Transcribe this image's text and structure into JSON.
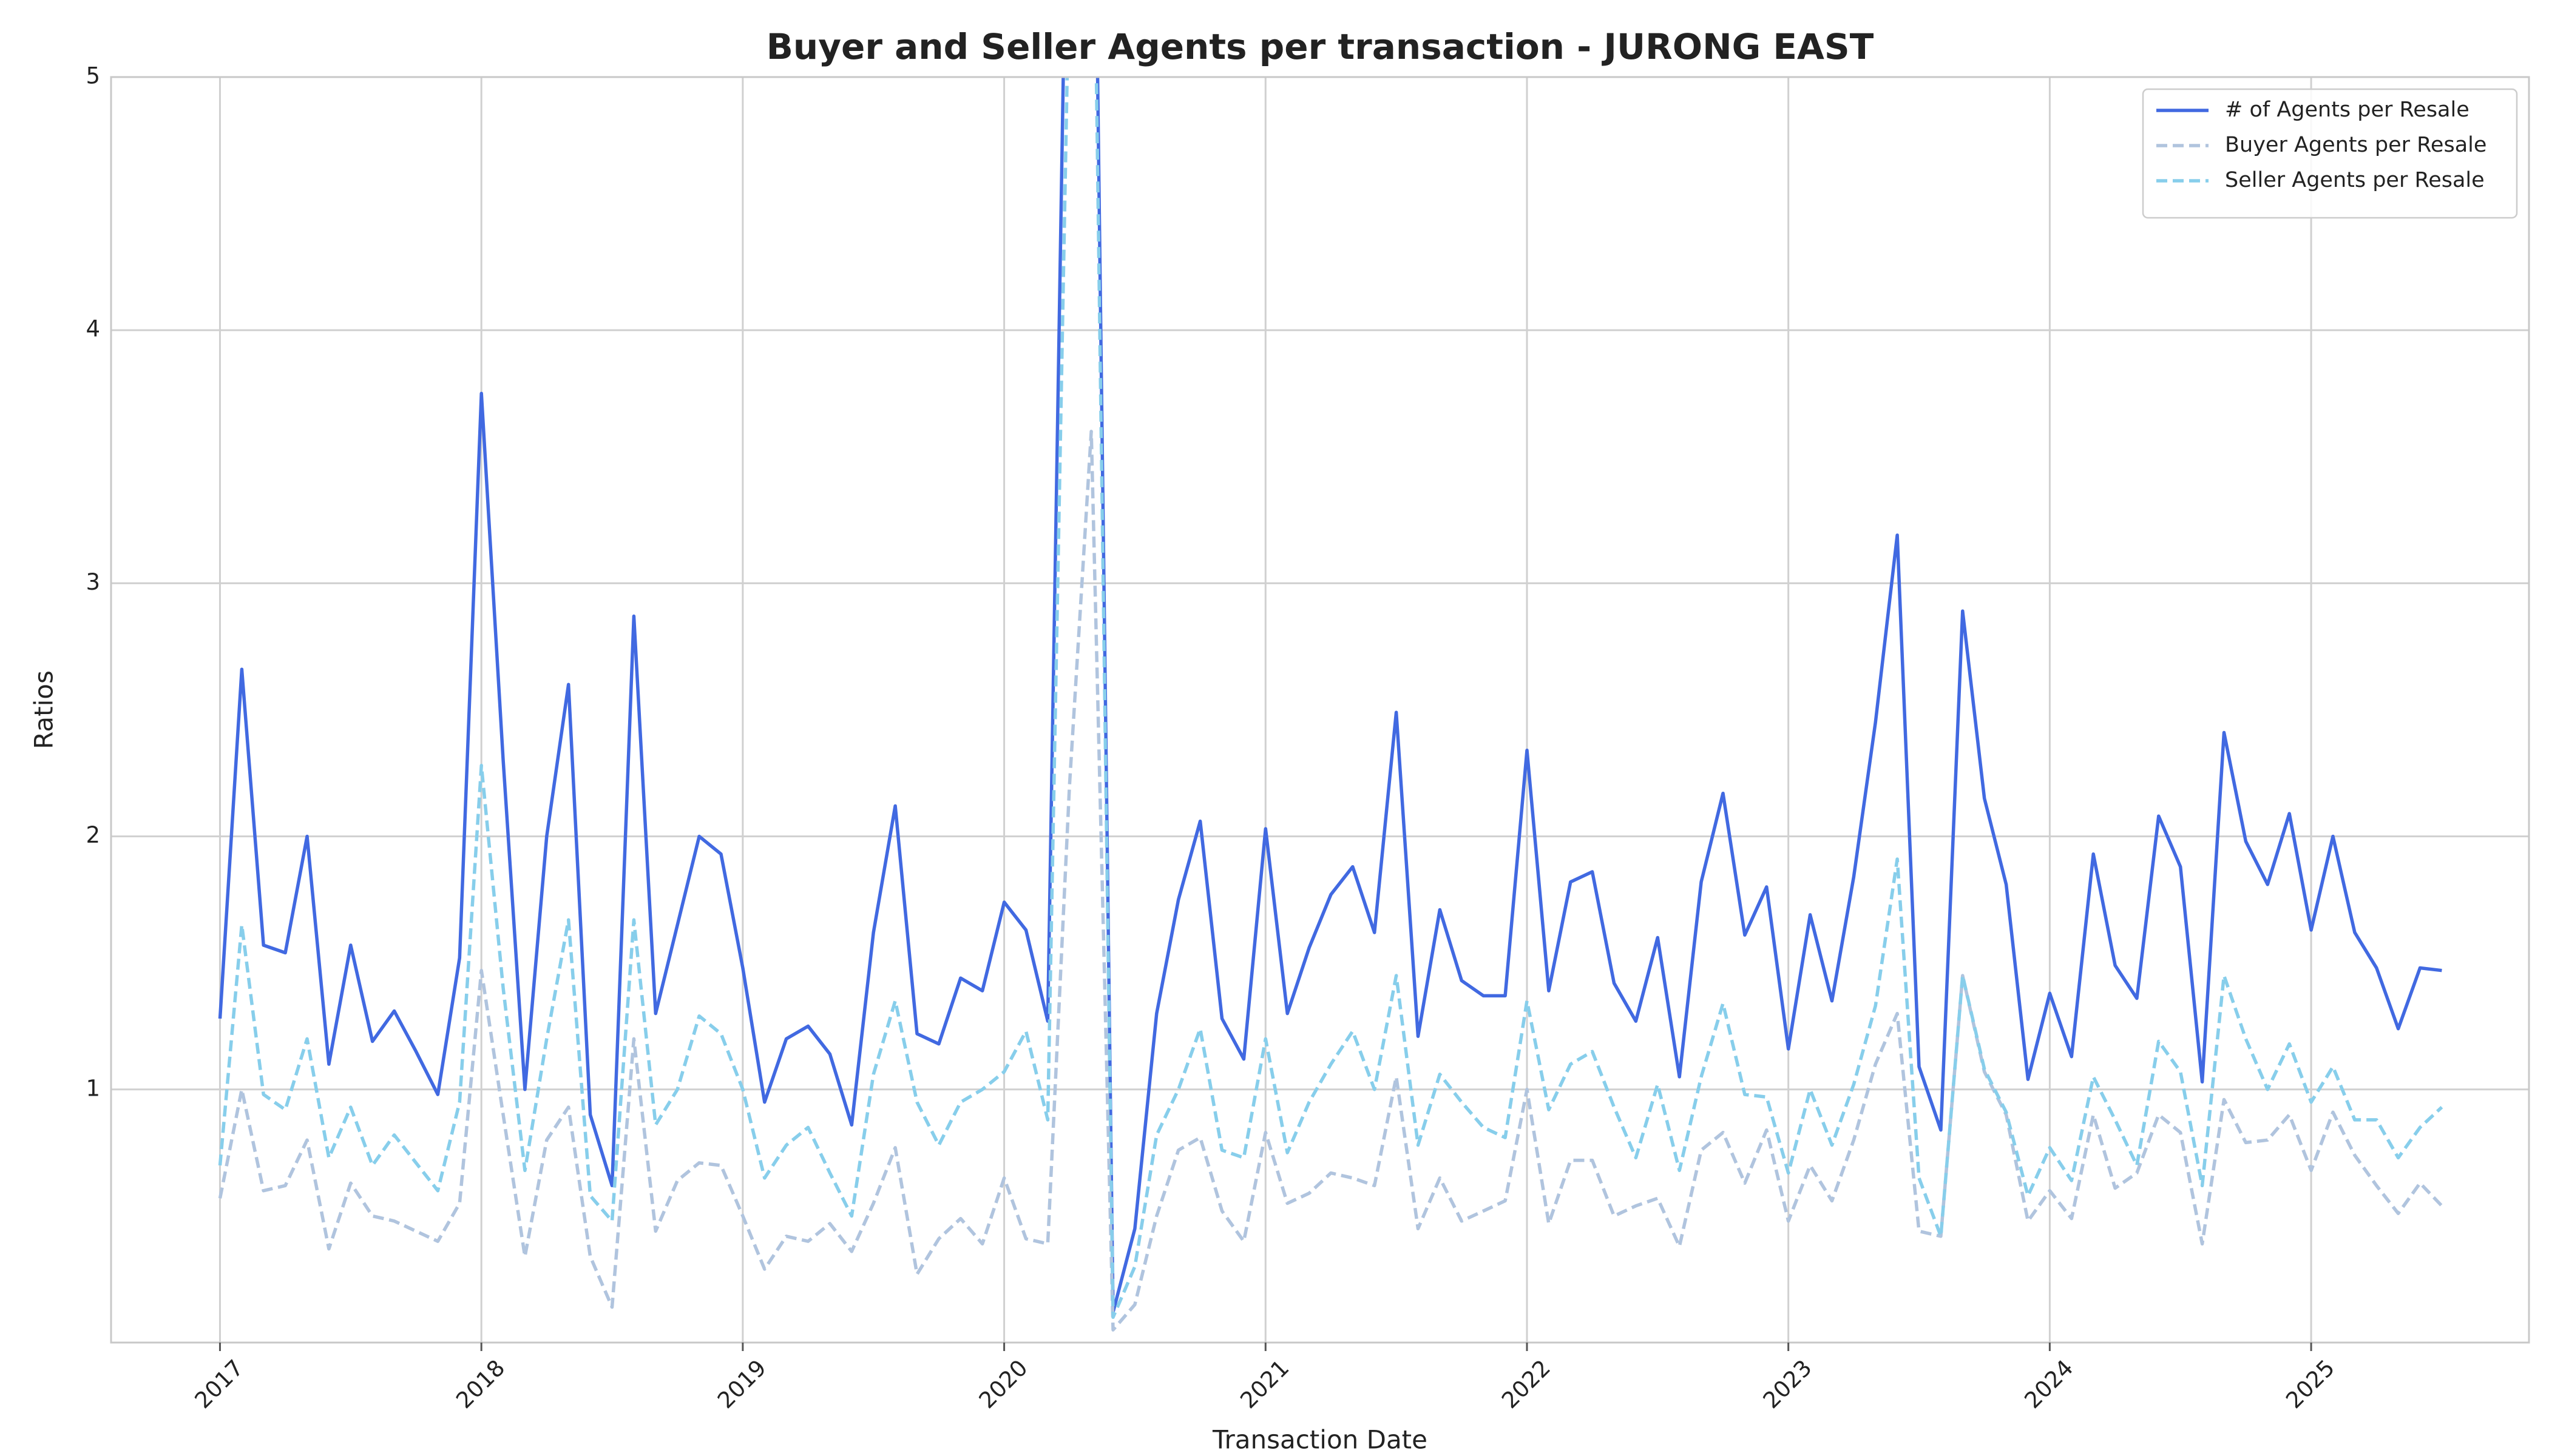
{
  "chart_data": {
    "type": "line",
    "title": "Buyer and Seller Agents per transaction - JURONG EAST",
    "xlabel": "Transaction Date",
    "ylabel": "Ratios",
    "x": [
      "2017-01",
      "2017-02",
      "2017-03",
      "2017-04",
      "2017-05",
      "2017-06",
      "2017-07",
      "2017-08",
      "2017-09",
      "2017-10",
      "2017-11",
      "2017-12",
      "2018-01",
      "2018-02",
      "2018-03",
      "2018-04",
      "2018-05",
      "2018-06",
      "2018-07",
      "2018-08",
      "2018-09",
      "2018-10",
      "2018-11",
      "2018-12",
      "2019-01",
      "2019-02",
      "2019-03",
      "2019-04",
      "2019-05",
      "2019-06",
      "2019-07",
      "2019-08",
      "2019-09",
      "2019-10",
      "2019-11",
      "2019-12",
      "2020-01",
      "2020-02",
      "2020-03",
      "2020-04",
      "2020-05",
      "2020-06",
      "2020-07",
      "2020-08",
      "2020-09",
      "2020-10",
      "2020-11",
      "2020-12",
      "2021-01",
      "2021-02",
      "2021-03",
      "2021-04",
      "2021-05",
      "2021-06",
      "2021-07",
      "2021-08",
      "2021-09",
      "2021-10",
      "2021-11",
      "2021-12",
      "2022-01",
      "2022-02",
      "2022-03",
      "2022-04",
      "2022-05",
      "2022-06",
      "2022-07",
      "2022-08",
      "2022-09",
      "2022-10",
      "2022-11",
      "2022-12",
      "2023-01",
      "2023-02",
      "2023-03",
      "2023-04",
      "2023-05",
      "2023-06",
      "2023-07",
      "2023-08",
      "2023-09",
      "2023-10",
      "2023-11",
      "2023-12",
      "2024-01",
      "2024-02",
      "2024-03",
      "2024-04",
      "2024-05",
      "2024-06",
      "2024-07",
      "2024-08",
      "2024-09",
      "2024-10",
      "2024-11",
      "2024-12",
      "2025-01",
      "2025-02",
      "2025-03",
      "2025-04",
      "2025-05",
      "2025-06",
      "2025-07"
    ],
    "series": [
      {
        "name": "# of Agents per Resale",
        "color": "#4169e1",
        "dash": false,
        "values": [
          1.28,
          2.66,
          1.57,
          1.54,
          2.0,
          1.1,
          1.57,
          1.19,
          1.31,
          1.15,
          0.98,
          1.52,
          3.75,
          2.3,
          1.0,
          2.0,
          2.6,
          0.9,
          0.62,
          2.87,
          1.3,
          1.65,
          2.0,
          1.93,
          1.48,
          0.95,
          1.2,
          1.25,
          1.14,
          0.86,
          1.62,
          2.12,
          1.22,
          1.18,
          1.44,
          1.39,
          1.74,
          1.63,
          1.27,
          6.5,
          7.0,
          0.12,
          0.45,
          1.3,
          1.75,
          2.06,
          1.28,
          1.12,
          2.03,
          1.3,
          1.56,
          1.77,
          1.88,
          1.62,
          2.49,
          1.21,
          1.71,
          1.43,
          1.37,
          1.37,
          2.34,
          1.39,
          1.82,
          1.86,
          1.42,
          1.27,
          1.6,
          1.05,
          1.82,
          2.17,
          1.61,
          1.8,
          1.16,
          1.69,
          1.35,
          1.84,
          2.45,
          3.19,
          1.09,
          0.84,
          2.89,
          2.15,
          1.81,
          1.04,
          1.38,
          1.13,
          1.93,
          1.49,
          1.36,
          2.08,
          1.88,
          1.03,
          2.41,
          1.98,
          1.81,
          2.09,
          1.63,
          2.0,
          1.62,
          1.48,
          1.24,
          1.48,
          1.47
        ]
      },
      {
        "name": "Buyer Agents per Resale",
        "color": "#b0c4de",
        "dash": true,
        "values": [
          0.57,
          1.0,
          0.6,
          0.62,
          0.8,
          0.37,
          0.63,
          0.5,
          0.48,
          0.44,
          0.4,
          0.55,
          1.47,
          0.9,
          0.34,
          0.8,
          0.93,
          0.34,
          0.14,
          1.2,
          0.44,
          0.64,
          0.71,
          0.7,
          0.5,
          0.29,
          0.42,
          0.4,
          0.47,
          0.36,
          0.55,
          0.77,
          0.27,
          0.41,
          0.49,
          0.39,
          0.65,
          0.41,
          0.39,
          2.2,
          3.6,
          0.05,
          0.15,
          0.5,
          0.76,
          0.81,
          0.52,
          0.4,
          0.83,
          0.55,
          0.59,
          0.67,
          0.65,
          0.62,
          1.05,
          0.45,
          0.65,
          0.48,
          0.52,
          0.56,
          1.0,
          0.47,
          0.72,
          0.72,
          0.5,
          0.54,
          0.57,
          0.38,
          0.76,
          0.83,
          0.63,
          0.84,
          0.48,
          0.7,
          0.56,
          0.8,
          1.1,
          1.3,
          0.44,
          0.42,
          1.45,
          1.07,
          0.9,
          0.48,
          0.6,
          0.49,
          0.9,
          0.61,
          0.67,
          0.9,
          0.83,
          0.39,
          0.96,
          0.79,
          0.8,
          0.9,
          0.68,
          0.91,
          0.74,
          0.62,
          0.51,
          0.63,
          0.54
        ]
      },
      {
        "name": "Seller Agents per Resale",
        "color": "#87ceeb",
        "dash": true,
        "values": [
          0.7,
          1.65,
          0.98,
          0.92,
          1.2,
          0.73,
          0.93,
          0.7,
          0.82,
          0.71,
          0.6,
          0.95,
          2.28,
          1.4,
          0.68,
          1.2,
          1.67,
          0.58,
          0.48,
          1.67,
          0.86,
          1.0,
          1.29,
          1.22,
          1.0,
          0.65,
          0.78,
          0.85,
          0.67,
          0.5,
          1.06,
          1.35,
          0.95,
          0.78,
          0.95,
          1.0,
          1.07,
          1.23,
          0.88,
          5.5,
          6.5,
          0.1,
          0.3,
          0.82,
          1.0,
          1.24,
          0.76,
          0.73,
          1.2,
          0.75,
          0.95,
          1.1,
          1.23,
          1.0,
          1.45,
          0.78,
          1.06,
          0.95,
          0.85,
          0.81,
          1.35,
          0.92,
          1.1,
          1.15,
          0.93,
          0.73,
          1.02,
          0.68,
          1.05,
          1.34,
          0.98,
          0.97,
          0.67,
          1.0,
          0.78,
          1.02,
          1.33,
          1.91,
          0.65,
          0.42,
          1.45,
          1.08,
          0.91,
          0.58,
          0.77,
          0.64,
          1.05,
          0.88,
          0.7,
          1.19,
          1.07,
          0.62,
          1.45,
          1.2,
          1.0,
          1.18,
          0.95,
          1.09,
          0.88,
          0.88,
          0.73,
          0.85,
          0.93
        ]
      }
    ],
    "xlim": [
      "2016-08",
      "2025-11"
    ],
    "xticks": [
      {
        "value": "2017-01",
        "label": "2017"
      },
      {
        "value": "2018-01",
        "label": "2018"
      },
      {
        "value": "2019-01",
        "label": "2019"
      },
      {
        "value": "2020-01",
        "label": "2020"
      },
      {
        "value": "2021-01",
        "label": "2021"
      },
      {
        "value": "2022-01",
        "label": "2022"
      },
      {
        "value": "2023-01",
        "label": "2023"
      },
      {
        "value": "2024-01",
        "label": "2024"
      },
      {
        "value": "2025-01",
        "label": "2025"
      }
    ],
    "ylim": [
      0,
      5
    ],
    "yticks": [
      1,
      2,
      3,
      4,
      5
    ],
    "grid": true,
    "legend": "upper right"
  }
}
